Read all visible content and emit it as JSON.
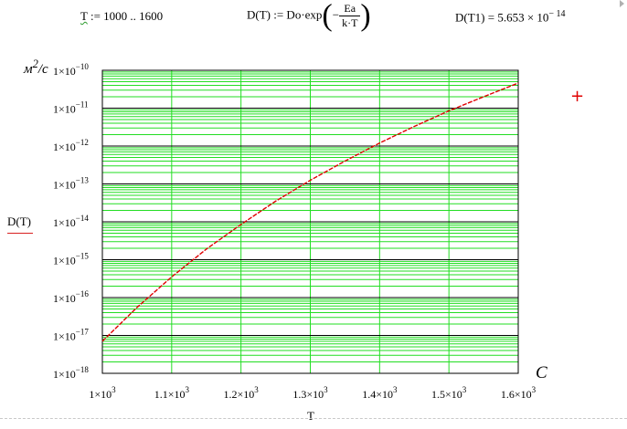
{
  "formulas": {
    "range_var": "T",
    "range_rest": " := 1000 .. 1600",
    "def_lhs": "D(T) := Do·exp",
    "def_num": "Ea",
    "def_den": "k·T",
    "def_sign": "−",
    "value_lhs": "D(T1) = 5.653 × 10",
    "value_exp": "− 14"
  },
  "axes": {
    "y_unit_text": "м",
    "y_unit_sup": "2",
    "y_unit_rest": "/с",
    "x_unit": "С",
    "y_var_label": "D(T)",
    "x_var_label": "T"
  },
  "marker": "+",
  "chart_data": {
    "type": "line",
    "x_scale": "linear",
    "y_scale": "log",
    "xlim": [
      1000,
      1600
    ],
    "ylim": [
      1e-18,
      1e-10
    ],
    "x_ticks": [
      {
        "m": "1×10",
        "e": "3"
      },
      {
        "m": "1.1×10",
        "e": "3"
      },
      {
        "m": "1.2×10",
        "e": "3"
      },
      {
        "m": "1.3×10",
        "e": "3"
      },
      {
        "m": "1.4×10",
        "e": "3"
      },
      {
        "m": "1.5×10",
        "e": "3"
      },
      {
        "m": "1.6×10",
        "e": "3"
      }
    ],
    "y_ticks": [
      {
        "m": "1×10",
        "e": "−10"
      },
      {
        "m": "1×10",
        "e": "−11"
      },
      {
        "m": "1×10",
        "e": "−12"
      },
      {
        "m": "1×10",
        "e": "−13"
      },
      {
        "m": "1×10",
        "e": "−14"
      },
      {
        "m": "1×10",
        "e": "−15"
      },
      {
        "m": "1×10",
        "e": "−16"
      },
      {
        "m": "1×10",
        "e": "−17"
      },
      {
        "m": "1×10",
        "e": "−18"
      }
    ],
    "grid": true,
    "colors": {
      "grid": "#22dd22",
      "decade": "#000000",
      "line": "#e00000"
    },
    "series": [
      {
        "x": [
          1000,
          1050,
          1100,
          1150,
          1200,
          1250,
          1300,
          1350,
          1400,
          1450,
          1500,
          1550,
          1600
        ],
        "y": [
          7e-18,
          5.5e-17,
          3.5e-16,
          1.9e-15,
          8.5e-15,
          3.5e-14,
          1.25e-13,
          4e-13,
          1.2e-12,
          3.3e-12,
          8.5e-12,
          2e-11,
          4.6e-11
        ]
      }
    ]
  }
}
